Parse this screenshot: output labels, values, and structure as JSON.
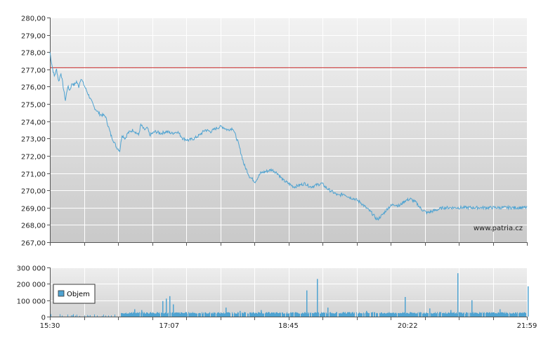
{
  "chart_data": [
    {
      "type": "line",
      "title": "",
      "xlabel": "",
      "ylabel": "",
      "ylim": [
        267,
        280
      ],
      "yticks": [
        "280,00",
        "279,00",
        "278,00",
        "277,00",
        "276,00",
        "275,00",
        "274,00",
        "273,00",
        "272,00",
        "271,00",
        "270,00",
        "269,00",
        "268,00",
        "267,00"
      ],
      "grid": true,
      "reference_line": {
        "value": 277.1,
        "color": "#cc3333"
      },
      "series_color": "#4fa3d1",
      "watermark": "www.patria.cz",
      "series": [
        {
          "x": [
            0,
            2,
            4,
            6,
            8,
            10,
            12,
            14,
            16,
            18,
            20,
            22,
            24,
            26,
            28,
            30,
            35,
            40,
            45,
            50,
            55,
            60,
            63,
            65,
            68,
            70,
            75,
            80,
            82,
            85,
            88,
            90,
            95,
            100,
            105,
            110,
            115,
            120,
            125,
            130,
            135,
            140,
            145,
            150,
            155,
            160,
            165,
            170,
            175,
            180,
            185,
            190,
            195,
            200,
            205,
            210,
            215,
            220,
            225,
            230,
            235,
            240,
            245,
            250,
            255,
            260,
            265,
            270,
            275,
            280,
            285,
            290,
            295,
            300,
            305,
            310,
            315,
            320,
            325,
            330,
            335,
            340,
            345,
            350,
            355,
            360,
            365,
            370,
            375,
            380,
            385,
            390,
            395,
            400,
            405,
            410,
            415,
            420,
            425,
            430,
            435,
            440,
            445,
            450,
            455,
            460,
            465,
            470,
            475,
            480,
            485,
            489
          ],
          "y": [
            278.0,
            277.2,
            276.6,
            277.0,
            276.3,
            276.8,
            276.0,
            275.2,
            276.0,
            275.8,
            276.2,
            276.1,
            276.3,
            276.0,
            276.5,
            276.2,
            275.5,
            274.8,
            274.4,
            274.3,
            273.2,
            272.5,
            272.3,
            273.2,
            273.0,
            273.3,
            273.5,
            273.2,
            273.8,
            273.5,
            273.6,
            273.2,
            273.4,
            273.3,
            273.4,
            273.3,
            273.4,
            273.0,
            272.9,
            273.0,
            273.2,
            273.5,
            273.4,
            273.6,
            273.7,
            273.5,
            273.6,
            272.7,
            271.5,
            270.8,
            270.5,
            271.0,
            271.1,
            271.2,
            271.0,
            270.6,
            270.4,
            270.2,
            270.3,
            270.4,
            270.2,
            270.3,
            270.4,
            270.1,
            269.9,
            269.7,
            269.8,
            269.6,
            269.5,
            269.3,
            269.0,
            268.7,
            268.3,
            268.6,
            269.0,
            269.2,
            269.1,
            269.4,
            269.5,
            269.3,
            268.9,
            268.7,
            268.8,
            268.9,
            269.0,
            269.0,
            269.0,
            269.0,
            269.0,
            269.0,
            269.0,
            269.0,
            269.0,
            269.0,
            269.0,
            269.0,
            269.0,
            269.0,
            269.0,
            269.0,
            269.0,
            269.0,
            269.0,
            269.0,
            269.0,
            269.0,
            269.0,
            269.0,
            269.0,
            269.0,
            269.0,
            269.0
          ]
        }
      ]
    },
    {
      "type": "bar",
      "title": "",
      "xlabel": "",
      "ylabel": "",
      "ylim": [
        0,
        300000
      ],
      "yticks": [
        "300 000",
        "200 000",
        "100 000",
        "0"
      ],
      "xticks": [
        "15:30",
        "17:07",
        "18:45",
        "20:22",
        "21:59"
      ],
      "grid": true,
      "bar_color": "#4fa3d1",
      "legend": {
        "label": "Objem",
        "placement": "left"
      },
      "spikes": [
        {
          "x": 170,
          "v": 125000
        },
        {
          "x": 175,
          "v": 75000
        },
        {
          "x": 380,
          "v": 230000
        },
        {
          "x": 365,
          "v": 160000
        },
        {
          "x": 395,
          "v": 55000
        },
        {
          "x": 505,
          "v": 120000
        },
        {
          "x": 580,
          "v": 265000
        },
        {
          "x": 600,
          "v": 100000
        },
        {
          "x": 680,
          "v": 185000
        },
        {
          "x": 640,
          "v": 45000
        },
        {
          "x": 570,
          "v": 40000
        },
        {
          "x": 540,
          "v": 50000
        },
        {
          "x": 450,
          "v": 35000
        },
        {
          "x": 300,
          "v": 40000
        },
        {
          "x": 270,
          "v": 35000
        },
        {
          "x": 120,
          "v": 45000
        },
        {
          "x": 130,
          "v": 40000
        },
        {
          "x": 160,
          "v": 95000
        },
        {
          "x": 165,
          "v": 110000
        },
        {
          "x": 250,
          "v": 55000
        }
      ],
      "baseline": 18000
    }
  ]
}
